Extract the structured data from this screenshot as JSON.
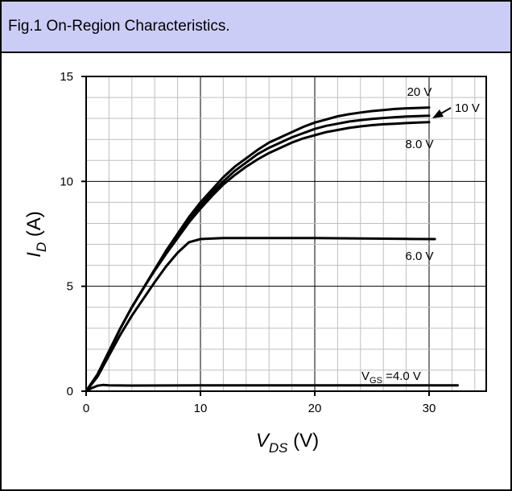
{
  "header": {
    "title": "Fig.1 On-Region Characteristics."
  },
  "chart_data": {
    "type": "line",
    "title": "",
    "xlabel": {
      "main": "V",
      "sub": "DS",
      "unit": " (V)"
    },
    "ylabel": {
      "main": "I",
      "sub": "D",
      "unit": " (A)"
    },
    "xlim": [
      0,
      35
    ],
    "ylim": [
      0,
      15
    ],
    "xticks": [
      "0",
      "10",
      "20",
      "30"
    ],
    "yticks": [
      "0",
      "5",
      "10",
      "15"
    ],
    "grid": true,
    "series_color": "#000000",
    "grid_color": "#bfbfbf",
    "series": [
      {
        "label": "20 V",
        "x": [
          0,
          1,
          2,
          3,
          4,
          5,
          6,
          7,
          8,
          9,
          10,
          11,
          12,
          13,
          14,
          15,
          16,
          17,
          18,
          19,
          20,
          21,
          22,
          23,
          24,
          25,
          26,
          27,
          28,
          29,
          30
        ],
        "y": [
          0,
          0.8,
          1.9,
          3.0,
          4.0,
          4.9,
          5.8,
          6.7,
          7.5,
          8.3,
          9.0,
          9.6,
          10.2,
          10.7,
          11.1,
          11.5,
          11.85,
          12.1,
          12.35,
          12.6,
          12.8,
          12.95,
          13.1,
          13.2,
          13.28,
          13.35,
          13.4,
          13.45,
          13.48,
          13.5,
          13.52
        ]
      },
      {
        "label": "10 V",
        "x": [
          0,
          1,
          2,
          3,
          4,
          5,
          6,
          7,
          8,
          9,
          10,
          11,
          12,
          13,
          14,
          15,
          16,
          17,
          18,
          19,
          20,
          21,
          22,
          23,
          24,
          25,
          26,
          27,
          28,
          29,
          30
        ],
        "y": [
          0,
          0.8,
          1.9,
          3.0,
          4.0,
          4.9,
          5.8,
          6.6,
          7.4,
          8.2,
          8.85,
          9.45,
          10.0,
          10.5,
          10.9,
          11.3,
          11.6,
          11.85,
          12.1,
          12.3,
          12.5,
          12.65,
          12.75,
          12.85,
          12.92,
          12.98,
          13.02,
          13.06,
          13.09,
          13.11,
          13.13
        ]
      },
      {
        "label": "8.0 V",
        "x": [
          0,
          1,
          2,
          3,
          4,
          5,
          6,
          7,
          8,
          9,
          10,
          11,
          12,
          13,
          14,
          15,
          16,
          17,
          18,
          19,
          20,
          21,
          22,
          23,
          24,
          25,
          26,
          27,
          28,
          29,
          30
        ],
        "y": [
          0,
          0.8,
          1.9,
          3.0,
          4.0,
          4.9,
          5.75,
          6.55,
          7.3,
          8.05,
          8.7,
          9.3,
          9.85,
          10.3,
          10.7,
          11.05,
          11.35,
          11.6,
          11.85,
          12.05,
          12.2,
          12.35,
          12.45,
          12.55,
          12.62,
          12.68,
          12.72,
          12.75,
          12.78,
          12.8,
          12.82
        ]
      },
      {
        "label": "6.0 V",
        "x": [
          0,
          1,
          2,
          3,
          4,
          5,
          6,
          7,
          8,
          9,
          10,
          12,
          14,
          16,
          18,
          20,
          22,
          24,
          26,
          28,
          30,
          30.5
        ],
        "y": [
          0,
          0.7,
          1.7,
          2.7,
          3.6,
          4.4,
          5.2,
          5.95,
          6.6,
          7.1,
          7.25,
          7.3,
          7.3,
          7.3,
          7.3,
          7.3,
          7.29,
          7.28,
          7.27,
          7.26,
          7.25,
          7.25
        ]
      },
      {
        "label": "V_GS =4.0 V",
        "x": [
          0,
          0.5,
          1,
          1.5,
          2,
          4,
          10,
          20,
          30,
          32.5
        ],
        "y": [
          0,
          0.15,
          0.26,
          0.3,
          0.28,
          0.27,
          0.28,
          0.28,
          0.28,
          0.28
        ]
      }
    ],
    "annotations": [
      {
        "text": "20 V"
      },
      {
        "text": "10 V",
        "arrow": true
      },
      {
        "text": "8.0 V"
      },
      {
        "text": "6.0 V"
      },
      {
        "text_main": "V",
        "text_sub": "GS",
        "text_rest": " =4.0 V"
      }
    ]
  }
}
